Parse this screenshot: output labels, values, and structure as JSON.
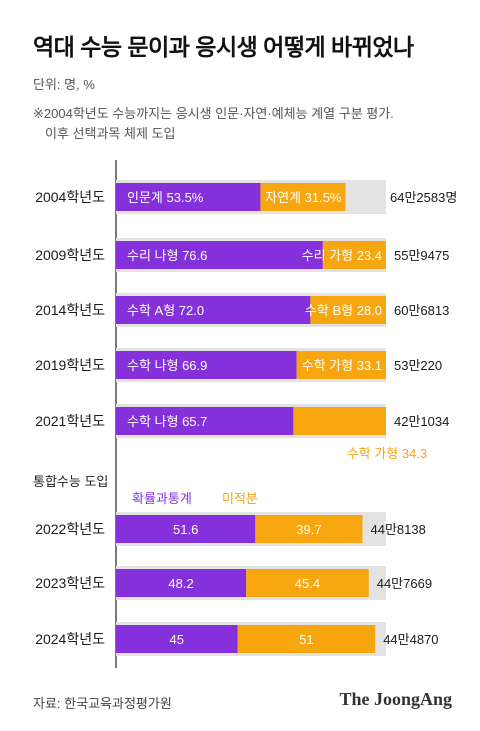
{
  "title": "역대 수능 문이과 응시생 어떻게 바뀌었나",
  "unit_label": "단위: 명, %",
  "note_lines": [
    "※2004학년도 수능까지는 응시생 인문·자연·예체능 계열 구분 평가.",
    "이후 선택과목 체제 도입"
  ],
  "section_label": "통합수능 도입",
  "source": "자료: 한국교육과정평가원",
  "brand": "The JoongAng",
  "colors": {
    "purple": "#8431dc",
    "orange": "#f7a60f",
    "track": "#e3e3e3",
    "axis": "#222222"
  },
  "chart_data": {
    "type": "bar",
    "orientation": "horizontal",
    "stacked": true,
    "title": "역대 수능 문이과 응시생 어떻게 바뀌었나",
    "unit": "명, %",
    "categories": [
      "2004학년도",
      "2009학년도",
      "2014학년도",
      "2019학년도",
      "2021학년도",
      "2022학년도",
      "2023학년도",
      "2024학년도"
    ],
    "rows": [
      {
        "year": "2004학년도",
        "total_label": "64만2583명",
        "total": 642583,
        "segments": [
          {
            "label": "인문계",
            "value": 53.5,
            "value_label": "53.5%",
            "color": "purple"
          },
          {
            "label": "자연계",
            "value": 31.5,
            "value_label": "31.5%",
            "color": "orange"
          }
        ]
      },
      {
        "year": "2009학년도",
        "total_label": "55만9475",
        "total": 559475,
        "segments": [
          {
            "label": "수리 나형",
            "value": 76.6,
            "value_label": "76.6",
            "color": "purple"
          },
          {
            "label": "수리 가형",
            "value": 23.4,
            "value_label": "23.4",
            "color": "orange"
          }
        ]
      },
      {
        "year": "2014학년도",
        "total_label": "60만6813",
        "total": 606813,
        "segments": [
          {
            "label": "수학 A형",
            "value": 72.0,
            "value_label": "72.0",
            "color": "purple"
          },
          {
            "label": "수학 B형",
            "value": 28.0,
            "value_label": "28.0",
            "color": "orange"
          }
        ]
      },
      {
        "year": "2019학년도",
        "total_label": "53만220",
        "total": 530220,
        "segments": [
          {
            "label": "수학 나형",
            "value": 66.9,
            "value_label": "66.9",
            "color": "purple"
          },
          {
            "label": "수학 가형",
            "value": 33.1,
            "value_label": "33.1",
            "color": "orange"
          }
        ]
      },
      {
        "year": "2021학년도",
        "total_label": "42만1034",
        "total": 421034,
        "segments": [
          {
            "label": "수학 나형",
            "value": 65.7,
            "value_label": "65.7",
            "color": "purple"
          },
          {
            "label": "수학 가형",
            "value": 34.3,
            "value_label": "34.3",
            "color": "orange",
            "label_below": true
          }
        ]
      },
      {
        "year": "2022학년도",
        "total_label": "44만8138",
        "total": 448138,
        "segments": [
          {
            "label": "확률과통계",
            "value": 51.6,
            "value_label": "51.6",
            "color": "purple",
            "value_only": true
          },
          {
            "label": "미적분",
            "value": 39.7,
            "value_label": "39.7",
            "color": "orange",
            "value_only": true
          }
        ]
      },
      {
        "year": "2023학년도",
        "total_label": "44만7669",
        "total": 447669,
        "segments": [
          {
            "label": "확률과통계",
            "value": 48.2,
            "value_label": "48.2",
            "color": "purple",
            "value_only": true
          },
          {
            "label": "미적분",
            "value": 45.4,
            "value_label": "45.4",
            "color": "orange",
            "value_only": true
          }
        ]
      },
      {
        "year": "2024학년도",
        "total_label": "44만4870",
        "total": 444870,
        "segments": [
          {
            "label": "확률과통계",
            "value": 45,
            "value_label": "45",
            "color": "purple",
            "value_only": true
          },
          {
            "label": "미적분",
            "value": 51,
            "value_label": "51",
            "color": "orange",
            "value_only": true
          }
        ]
      }
    ],
    "legend": [
      {
        "label": "확률과통계",
        "color": "purple"
      },
      {
        "label": "미적분",
        "color": "orange"
      }
    ],
    "xlim": [
      0,
      100
    ],
    "grid": false
  }
}
